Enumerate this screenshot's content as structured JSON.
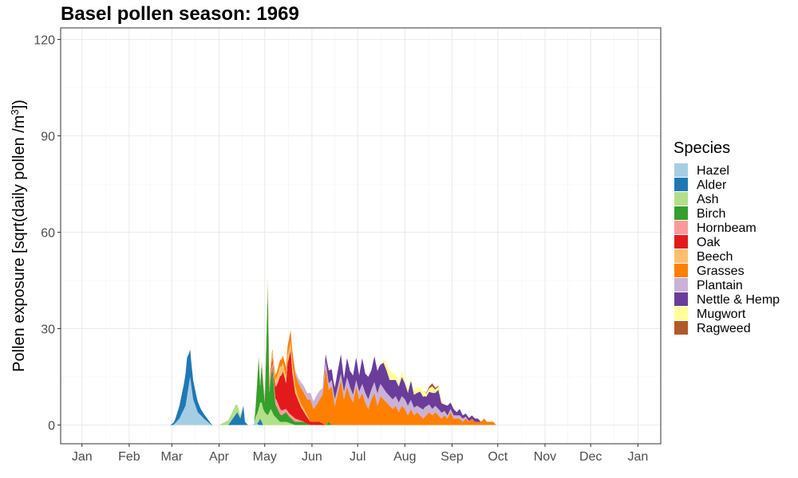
{
  "chart_data": {
    "type": "area",
    "title": "Basel pollen season: 1969",
    "ylabel_main": "Pollen exposure [sqrt(daily pollen /m",
    "ylabel_sup": "3",
    "ylabel_end": "])",
    "xlabel": "",
    "ylim": [
      0,
      120
    ],
    "y_ticks": [
      0,
      30,
      60,
      90,
      120
    ],
    "x_ticks": [
      "Jan",
      "Feb",
      "Mar",
      "Apr",
      "May",
      "Jun",
      "Jul",
      "Aug",
      "Sep",
      "Oct",
      "Nov",
      "Dec",
      "Jan"
    ],
    "x_domain_days": [
      -14,
      380
    ],
    "grid": true,
    "stacked": true,
    "legend": {
      "title": "Species",
      "position": "right",
      "items": [
        {
          "name": "Hazel",
          "color": "#a6cee3"
        },
        {
          "name": "Alder",
          "color": "#1f78b4"
        },
        {
          "name": "Ash",
          "color": "#b2df8a"
        },
        {
          "name": "Birch",
          "color": "#33a02c"
        },
        {
          "name": "Hornbeam",
          "color": "#fb9a99"
        },
        {
          "name": "Oak",
          "color": "#e31a1c"
        },
        {
          "name": "Beech",
          "color": "#fdbf6f"
        },
        {
          "name": "Grasses",
          "color": "#ff7f00"
        },
        {
          "name": "Plantain",
          "color": "#cab2d6"
        },
        {
          "name": "Nettle & Hemp",
          "color": "#6a3d9a"
        },
        {
          "name": "Mugwort",
          "color": "#ffff99"
        },
        {
          "name": "Ragweed",
          "color": "#b15928"
        }
      ]
    },
    "series": [
      {
        "name": "Hazel",
        "points": [
          [
            60,
            0
          ],
          [
            64,
            2
          ],
          [
            68,
            6
          ],
          [
            71,
            15
          ],
          [
            73,
            8
          ],
          [
            76,
            4
          ],
          [
            80,
            2
          ],
          [
            85,
            0
          ],
          [
            112,
            0
          ],
          [
            114,
            1
          ],
          [
            116,
            0
          ]
        ]
      },
      {
        "name": "Alder",
        "points": [
          [
            58,
            0
          ],
          [
            61,
            1
          ],
          [
            64,
            4
          ],
          [
            67,
            8
          ],
          [
            69,
            12
          ],
          [
            70,
            10
          ],
          [
            72,
            7
          ],
          [
            75,
            4
          ],
          [
            78,
            2
          ],
          [
            82,
            1
          ],
          [
            86,
            0
          ],
          [
            96,
            0
          ],
          [
            99,
            2
          ],
          [
            102,
            4
          ],
          [
            104,
            2
          ],
          [
            106,
            6
          ],
          [
            107,
            1
          ],
          [
            109,
            0
          ],
          [
            115,
            0
          ],
          [
            117,
            2
          ],
          [
            119,
            0
          ]
        ]
      },
      {
        "name": "Ash",
        "points": [
          [
            90,
            0
          ],
          [
            94,
            1
          ],
          [
            98,
            2
          ],
          [
            101,
            3
          ],
          [
            104,
            1
          ],
          [
            106,
            0
          ],
          [
            113,
            0
          ],
          [
            115,
            3
          ],
          [
            118,
            6
          ],
          [
            120,
            4
          ],
          [
            122,
            3
          ],
          [
            124,
            5
          ],
          [
            126,
            3
          ],
          [
            128,
            2
          ],
          [
            130,
            1
          ],
          [
            134,
            1
          ],
          [
            140,
            0
          ]
        ]
      },
      {
        "name": "Birch",
        "points": [
          [
            113,
            0
          ],
          [
            114,
            3
          ],
          [
            116,
            16
          ],
          [
            117,
            5
          ],
          [
            118,
            12
          ],
          [
            120,
            3
          ],
          [
            121,
            20
          ],
          [
            122,
            40
          ],
          [
            123,
            6
          ],
          [
            125,
            14
          ],
          [
            127,
            4
          ],
          [
            129,
            3
          ],
          [
            131,
            2
          ],
          [
            134,
            3
          ],
          [
            136,
            2
          ],
          [
            140,
            1
          ],
          [
            145,
            1
          ],
          [
            150,
            0
          ],
          [
            160,
            0
          ],
          [
            162,
            1
          ],
          [
            164,
            0
          ]
        ]
      },
      {
        "name": "Hornbeam",
        "points": [
          [
            113,
            0
          ],
          [
            118,
            1
          ],
          [
            122,
            1
          ],
          [
            128,
            2
          ],
          [
            134,
            1
          ],
          [
            140,
            1
          ],
          [
            146,
            0
          ]
        ]
      },
      {
        "name": "Oak",
        "points": [
          [
            122,
            0
          ],
          [
            126,
            2
          ],
          [
            128,
            5
          ],
          [
            130,
            10
          ],
          [
            132,
            12
          ],
          [
            134,
            8
          ],
          [
            135,
            15
          ],
          [
            137,
            20
          ],
          [
            138,
            14
          ],
          [
            140,
            8
          ],
          [
            142,
            6
          ],
          [
            144,
            4
          ],
          [
            146,
            3
          ],
          [
            150,
            1
          ],
          [
            156,
            1
          ],
          [
            160,
            0
          ]
        ]
      },
      {
        "name": "Beech",
        "points": [
          [
            118,
            0
          ],
          [
            122,
            1
          ],
          [
            126,
            2
          ],
          [
            130,
            3
          ],
          [
            134,
            2
          ],
          [
            138,
            3
          ],
          [
            142,
            1
          ],
          [
            146,
            1
          ],
          [
            150,
            0
          ]
        ]
      },
      {
        "name": "Grasses",
        "points": [
          [
            118,
            0
          ],
          [
            125,
            1
          ],
          [
            130,
            2
          ],
          [
            135,
            3
          ],
          [
            140,
            4
          ],
          [
            144,
            5
          ],
          [
            148,
            5
          ],
          [
            150,
            7
          ],
          [
            152,
            4
          ],
          [
            155,
            6
          ],
          [
            158,
            9
          ],
          [
            160,
            18
          ],
          [
            162,
            10
          ],
          [
            164,
            12
          ],
          [
            166,
            6
          ],
          [
            168,
            10
          ],
          [
            170,
            14
          ],
          [
            172,
            8
          ],
          [
            174,
            12
          ],
          [
            176,
            9
          ],
          [
            178,
            7
          ],
          [
            180,
            12
          ],
          [
            182,
            8
          ],
          [
            184,
            10
          ],
          [
            186,
            7
          ],
          [
            188,
            5
          ],
          [
            190,
            8
          ],
          [
            192,
            10
          ],
          [
            194,
            6
          ],
          [
            196,
            9
          ],
          [
            198,
            8
          ],
          [
            200,
            7
          ],
          [
            202,
            6
          ],
          [
            204,
            5
          ],
          [
            206,
            6
          ],
          [
            208,
            4
          ],
          [
            210,
            6
          ],
          [
            212,
            5
          ],
          [
            214,
            3
          ],
          [
            216,
            5
          ],
          [
            218,
            3
          ],
          [
            220,
            4
          ],
          [
            222,
            3
          ],
          [
            224,
            2
          ],
          [
            226,
            3
          ],
          [
            228,
            4
          ],
          [
            230,
            3
          ],
          [
            232,
            4
          ],
          [
            234,
            3
          ],
          [
            236,
            2
          ],
          [
            238,
            3
          ],
          [
            240,
            2
          ],
          [
            242,
            4
          ],
          [
            244,
            2
          ],
          [
            246,
            2
          ],
          [
            248,
            2
          ],
          [
            250,
            1
          ],
          [
            252,
            2
          ],
          [
            254,
            1
          ],
          [
            256,
            2
          ],
          [
            258,
            1
          ],
          [
            260,
            1
          ],
          [
            262,
            1
          ],
          [
            264,
            2
          ],
          [
            266,
            1
          ],
          [
            268,
            1
          ],
          [
            270,
            1
          ],
          [
            272,
            0
          ]
        ]
      },
      {
        "name": "Plantain",
        "points": [
          [
            135,
            0
          ],
          [
            140,
            1
          ],
          [
            145,
            2
          ],
          [
            150,
            2
          ],
          [
            155,
            3
          ],
          [
            158,
            2
          ],
          [
            160,
            2
          ],
          [
            165,
            2
          ],
          [
            170,
            2
          ],
          [
            175,
            3
          ],
          [
            180,
            2
          ],
          [
            185,
            3
          ],
          [
            190,
            3
          ],
          [
            195,
            4
          ],
          [
            200,
            3
          ],
          [
            205,
            3
          ],
          [
            210,
            3
          ],
          [
            215,
            3
          ],
          [
            220,
            2
          ],
          [
            225,
            3
          ],
          [
            230,
            2
          ],
          [
            235,
            2
          ],
          [
            240,
            1
          ],
          [
            245,
            1
          ],
          [
            250,
            1
          ],
          [
            255,
            0
          ]
        ]
      },
      {
        "name": "Nettle & Hemp",
        "points": [
          [
            158,
            0
          ],
          [
            160,
            2
          ],
          [
            162,
            4
          ],
          [
            165,
            3
          ],
          [
            168,
            5
          ],
          [
            170,
            6
          ],
          [
            172,
            4
          ],
          [
            174,
            6
          ],
          [
            176,
            5
          ],
          [
            178,
            6
          ],
          [
            180,
            7
          ],
          [
            182,
            5
          ],
          [
            184,
            8
          ],
          [
            186,
            6
          ],
          [
            188,
            7
          ],
          [
            190,
            6
          ],
          [
            192,
            8
          ],
          [
            194,
            7
          ],
          [
            196,
            6
          ],
          [
            198,
            8
          ],
          [
            200,
            7
          ],
          [
            202,
            5
          ],
          [
            204,
            6
          ],
          [
            206,
            5
          ],
          [
            208,
            5
          ],
          [
            210,
            6
          ],
          [
            212,
            5
          ],
          [
            214,
            4
          ],
          [
            216,
            6
          ],
          [
            218,
            4
          ],
          [
            220,
            4
          ],
          [
            222,
            5
          ],
          [
            224,
            4
          ],
          [
            226,
            3
          ],
          [
            228,
            4
          ],
          [
            230,
            5
          ],
          [
            232,
            4
          ],
          [
            234,
            6
          ],
          [
            236,
            3
          ],
          [
            238,
            2
          ],
          [
            240,
            3
          ],
          [
            242,
            2
          ],
          [
            244,
            2
          ],
          [
            246,
            1
          ],
          [
            248,
            2
          ],
          [
            250,
            1
          ],
          [
            252,
            1
          ],
          [
            254,
            1
          ],
          [
            256,
            1
          ],
          [
            258,
            1
          ],
          [
            260,
            1
          ],
          [
            262,
            0
          ]
        ]
      },
      {
        "name": "Mugwort",
        "points": [
          [
            196,
            0
          ],
          [
            198,
            1
          ],
          [
            200,
            2
          ],
          [
            202,
            3
          ],
          [
            204,
            2
          ],
          [
            206,
            2
          ],
          [
            208,
            1
          ],
          [
            210,
            2
          ],
          [
            212,
            1
          ],
          [
            214,
            1
          ],
          [
            216,
            1
          ],
          [
            218,
            1
          ],
          [
            220,
            2
          ],
          [
            222,
            1
          ],
          [
            224,
            2
          ],
          [
            226,
            1
          ],
          [
            228,
            1
          ],
          [
            230,
            2
          ],
          [
            232,
            1
          ],
          [
            234,
            1
          ],
          [
            236,
            1
          ],
          [
            238,
            0
          ]
        ]
      },
      {
        "name": "Ragweed",
        "points": [
          [
            225,
            0
          ],
          [
            230,
            1
          ],
          [
            235,
            0
          ]
        ]
      }
    ]
  }
}
